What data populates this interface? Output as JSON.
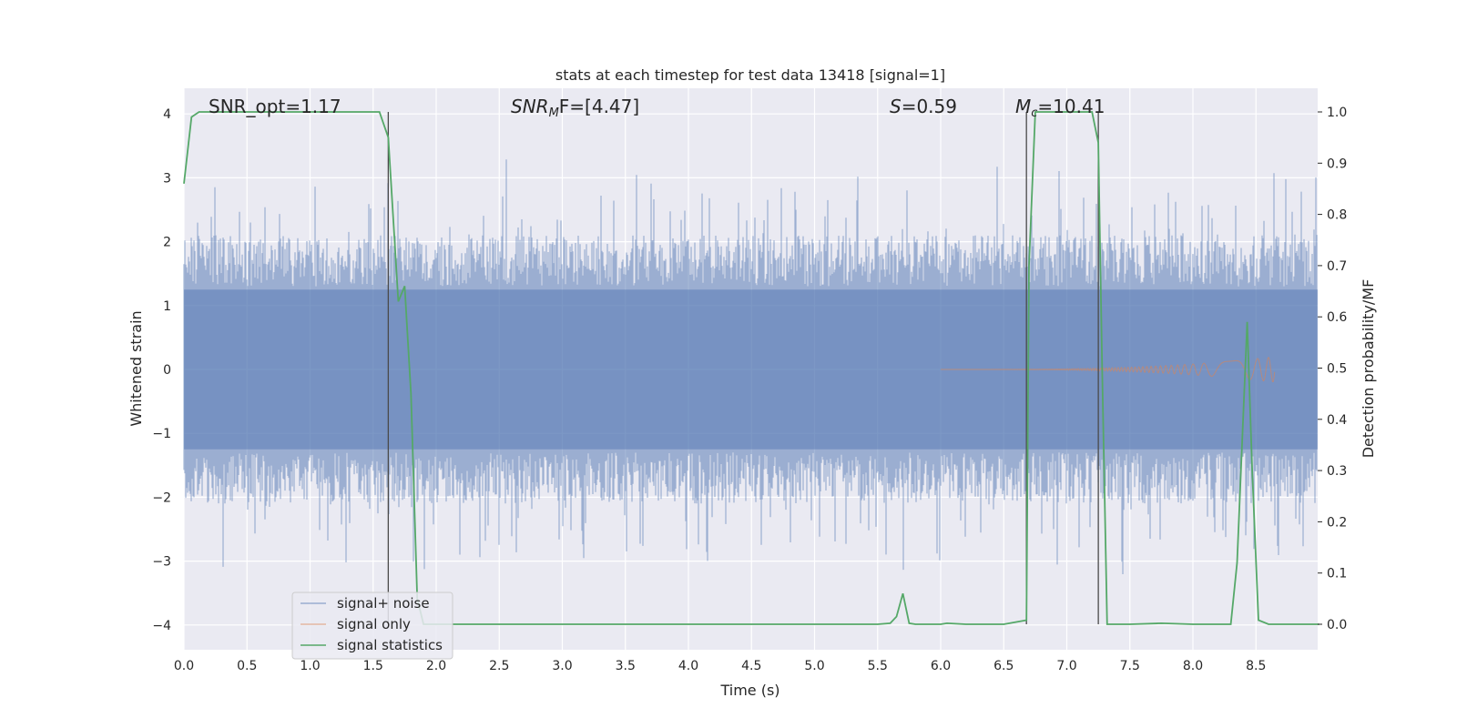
{
  "chart_data": {
    "type": "line",
    "title": "stats at each timestep for test data 13418 [signal=1]",
    "xlabel": "Time (s)",
    "ylabel_left": "Whitened strain",
    "ylabel_right": "Detection probability/MF",
    "xlim": [
      0.0,
      9.0
    ],
    "ylim_left": [
      -4.4,
      4.4
    ],
    "ylim_right": [
      -0.05,
      1.05
    ],
    "x_ticks": [
      "0.0",
      "0.5",
      "1.0",
      "1.5",
      "2.0",
      "2.5",
      "3.0",
      "3.5",
      "4.0",
      "4.5",
      "5.0",
      "5.5",
      "6.0",
      "6.5",
      "7.0",
      "7.5",
      "8.0",
      "8.5"
    ],
    "y_ticks_left": [
      "−4",
      "−3",
      "−2",
      "−1",
      "0",
      "1",
      "2",
      "3",
      "4"
    ],
    "y_ticks_right": [
      "0.0",
      "0.1",
      "0.2",
      "0.3",
      "0.4",
      "0.5",
      "0.6",
      "0.7",
      "0.8",
      "0.9",
      "1.0"
    ],
    "grid": true,
    "legend_position": "lower-left",
    "annotations": {
      "snr_opt": "SNR_opt=1.17",
      "snr_mf_base": "SNR",
      "snr_mf_sub": "M",
      "snr_mf_rest": "F=[4.47]",
      "s_base": "S",
      "s_rest": "=0.59",
      "mc_base": "M",
      "mc_sub": "c",
      "mc_rest": "=10.41"
    },
    "vertical_markers_s": [
      1.62,
      6.68,
      7.25
    ],
    "series": [
      {
        "name": "signal+ noise",
        "color": "#4c72b0",
        "axis": "left",
        "description_values": "whitened noise, envelope approx ±2 with spikes to ±3.8",
        "amplitude_range": [
          -3.8,
          3.8
        ]
      },
      {
        "name": "signal only",
        "color": "#dd8452",
        "axis": "left",
        "chirp_start": 6.0,
        "chirp_end": 8.65,
        "peak_amplitude": 0.2
      },
      {
        "name": "signal statistics",
        "color": "#55a868",
        "axis": "right",
        "x": [
          0.0,
          0.06,
          0.12,
          0.2,
          0.5,
          0.8,
          1.1,
          1.4,
          1.55,
          1.62,
          1.66,
          1.7,
          1.75,
          1.8,
          1.85,
          1.9,
          2.0,
          2.5,
          3.0,
          3.5,
          4.0,
          4.5,
          5.0,
          5.3,
          5.5,
          5.6,
          5.65,
          5.7,
          5.75,
          5.8,
          6.0,
          6.05,
          6.2,
          6.5,
          6.68,
          6.7,
          6.75,
          6.8,
          7.0,
          7.2,
          7.25,
          7.28,
          7.32,
          7.5,
          7.75,
          8.0,
          8.3,
          8.35,
          8.43,
          8.47,
          8.52,
          8.6,
          8.8,
          9.0
        ],
        "values": [
          0.86,
          0.99,
          1.0,
          1.0,
          1.0,
          1.0,
          1.0,
          1.0,
          1.0,
          0.95,
          0.79,
          0.63,
          0.66,
          0.45,
          0.05,
          0.0,
          0.0,
          0.0,
          0.0,
          0.0,
          0.0,
          0.0,
          0.0,
          0.0,
          0.0,
          0.002,
          0.015,
          0.06,
          0.002,
          0.0,
          0.0,
          0.002,
          0.0,
          0.0,
          0.008,
          0.7,
          1.0,
          1.0,
          1.0,
          1.0,
          0.94,
          0.5,
          0.0,
          0.0,
          0.002,
          0.0,
          0.0,
          0.12,
          0.59,
          0.3,
          0.008,
          0.0,
          0.0,
          0.0
        ]
      }
    ]
  }
}
